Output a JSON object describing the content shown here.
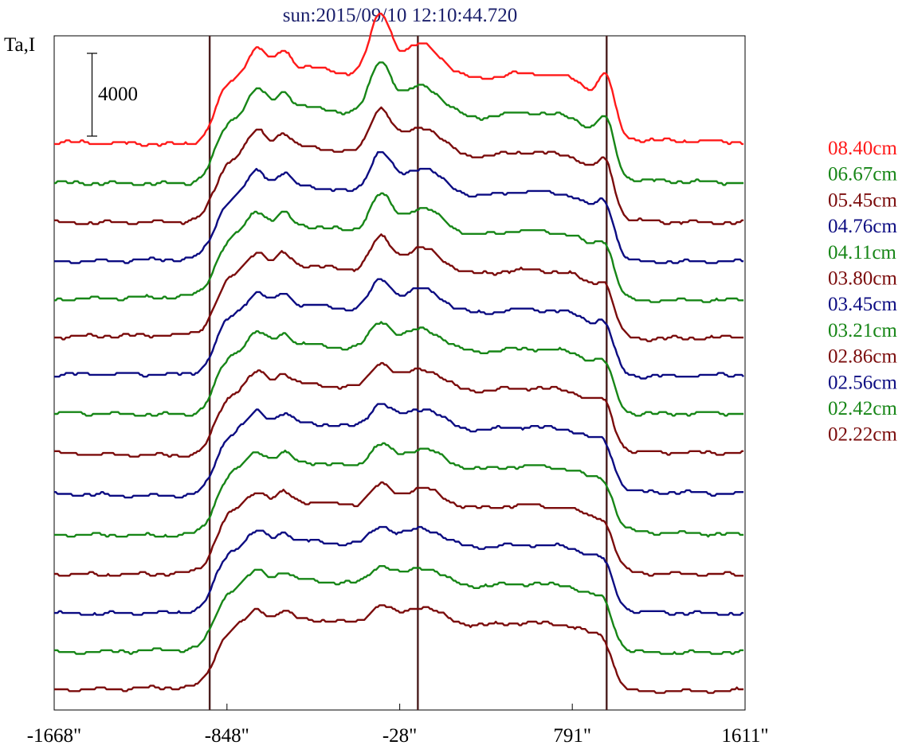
{
  "chart_data": {
    "type": "line",
    "title": "sun:2015/09/10 12:10:44.720",
    "ylabel": "Ta,I",
    "xlabel": "",
    "x_ticks": [
      "-1668\"",
      "-848\"",
      "-28\"",
      "791\"",
      "1611\""
    ],
    "x_tick_values": [
      -1668,
      -848,
      -28,
      791,
      1611
    ],
    "xlim": [
      -1668,
      1611
    ],
    "vertical_lines": [
      -930,
      58,
      954
    ],
    "scale_bar_label": "4000",
    "scale_bar_value": 4000,
    "y_units_per_series_offset": 1050,
    "legend_placement": "right",
    "grid": false,
    "series": [
      {
        "name": "08.40cm",
        "color": "#ff1a1a",
        "baseline": 11,
        "amp": 1.0
      },
      {
        "name": "06.67cm",
        "color": "#178617",
        "baseline": 10,
        "amp": 0.93
      },
      {
        "name": "05.45cm",
        "color": "#7b0c0c",
        "baseline": 9,
        "amp": 0.86
      },
      {
        "name": "04.76cm",
        "color": "#0c0c82",
        "baseline": 8,
        "amp": 0.82
      },
      {
        "name": "04.11cm",
        "color": "#178617",
        "baseline": 7,
        "amp": 0.78
      },
      {
        "name": "03.80cm",
        "color": "#7b0c0c",
        "baseline": 6,
        "amp": 0.74
      },
      {
        "name": "03.45cm",
        "color": "#0c0c82",
        "baseline": 5,
        "amp": 0.7
      },
      {
        "name": "03.21cm",
        "color": "#178617",
        "baseline": 4,
        "amp": 0.67
      },
      {
        "name": "02.86cm",
        "color": "#7b0c0c",
        "baseline": 3,
        "amp": 0.64
      },
      {
        "name": "02.56cm",
        "color": "#0c0c82",
        "baseline": 2,
        "amp": 0.62
      },
      {
        "name": "02.42cm",
        "color": "#178617",
        "baseline": 1,
        "amp": 0.6
      },
      {
        "name": "02.22cm",
        "color": "#7b0c0c",
        "baseline": 0,
        "amp": 0.58
      }
    ],
    "extra_series_colors": [
      "#0c0c82",
      "#178617",
      "#7b0c0c"
    ]
  }
}
